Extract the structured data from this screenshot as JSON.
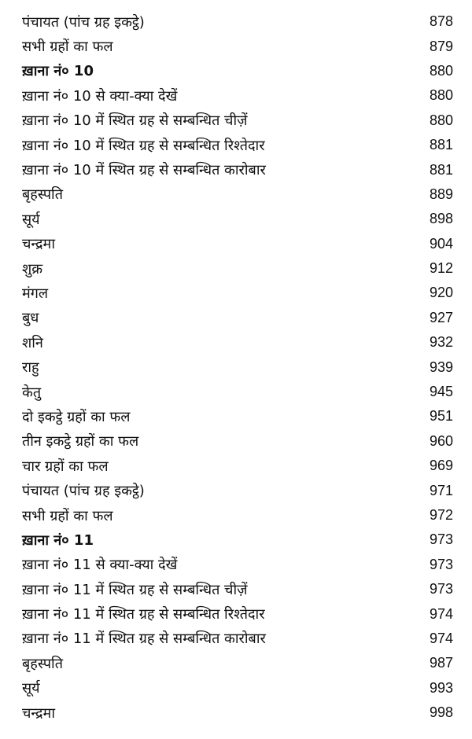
{
  "toc": [
    {
      "title": "पंचायत (पांच ग्रह इकट्ठे)",
      "page": "878",
      "bold": false
    },
    {
      "title": "सभी ग्रहों का फल",
      "page": "879",
      "bold": false
    },
    {
      "title": "ख़ाना नं० 10",
      "page": "880",
      "bold": true
    },
    {
      "title": "ख़ाना नं० 10 से क्या-क्या देखें",
      "page": "880",
      "bold": false
    },
    {
      "title": "ख़ाना नं० 10 में स्थित ग्रह से सम्बन्धित चीज़ें",
      "page": "880",
      "bold": false
    },
    {
      "title": "ख़ाना नं० 10 में स्थित ग्रह से सम्बन्धित रिश्तेदार",
      "page": "881",
      "bold": false
    },
    {
      "title": "ख़ाना नं० 10 में स्थित ग्रह से सम्बन्धित कारोबार",
      "page": "881",
      "bold": false
    },
    {
      "title": "बृहस्पति",
      "page": "889",
      "bold": false
    },
    {
      "title": "सूर्य",
      "page": "898",
      "bold": false
    },
    {
      "title": "चन्द्रमा",
      "page": "904",
      "bold": false
    },
    {
      "title": "शुक्र",
      "page": "912",
      "bold": false
    },
    {
      "title": "मंगल",
      "page": "920",
      "bold": false
    },
    {
      "title": "बुध",
      "page": "927",
      "bold": false
    },
    {
      "title": "शनि",
      "page": "932",
      "bold": false
    },
    {
      "title": "राहु",
      "page": "939",
      "bold": false
    },
    {
      "title": "केतु",
      "page": "945",
      "bold": false
    },
    {
      "title": "दो इकट्ठे ग्रहों का फल",
      "page": "951",
      "bold": false
    },
    {
      "title": "तीन इकट्ठे ग्रहों का फल",
      "page": "960",
      "bold": false
    },
    {
      "title": "चार ग्रहों का फल",
      "page": "969",
      "bold": false
    },
    {
      "title": "पंचायत (पांच ग्रह इकट्ठे)",
      "page": "971",
      "bold": false
    },
    {
      "title": "सभी ग्रहों का फल",
      "page": "972",
      "bold": false
    },
    {
      "title": "ख़ाना नं० 11",
      "page": "973",
      "bold": true
    },
    {
      "title": "ख़ाना नं० 11 से क्या-क्या देखें",
      "page": "973",
      "bold": false
    },
    {
      "title": "ख़ाना नं० 11 में स्थित ग्रह से सम्बन्धित चीज़ें",
      "page": "973",
      "bold": false
    },
    {
      "title": "ख़ाना नं० 11 में स्थित ग्रह से सम्बन्धित रिश्तेदार",
      "page": "974",
      "bold": false
    },
    {
      "title": "ख़ाना नं० 11 में स्थित ग्रह से सम्बन्धित कारोबार",
      "page": "974",
      "bold": false
    },
    {
      "title": "बृहस्पति",
      "page": "987",
      "bold": false
    },
    {
      "title": "सूर्य",
      "page": "993",
      "bold": false
    },
    {
      "title": "चन्द्रमा",
      "page": "998",
      "bold": false
    }
  ]
}
